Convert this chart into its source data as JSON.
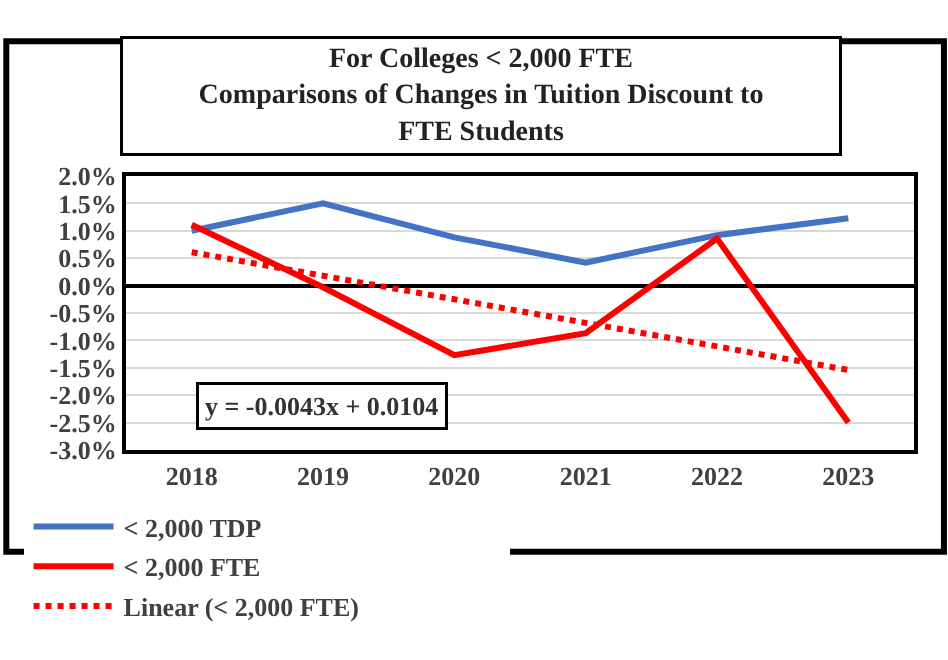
{
  "chart_data": {
    "type": "line",
    "title": "For Colleges < 2,000 FTE\nComparisons of Changes in Tuition Discount to\nFTE Students",
    "categories": [
      "2018",
      "2019",
      "2020",
      "2021",
      "2022",
      "2023"
    ],
    "series": [
      {
        "name": "< 2,000 TDP",
        "color": "#4472c4",
        "values": [
          1.0,
          1.5,
          0.88,
          0.42,
          0.92,
          1.23
        ]
      },
      {
        "name": "< 2,000 FTE",
        "color": "#ff0000",
        "values": [
          1.11,
          -0.03,
          -1.27,
          -0.87,
          0.86,
          -2.5
        ]
      },
      {
        "name": "Linear (< 2,000 FTE)",
        "color": "#ff0000",
        "line_style": "dotted",
        "values": [
          0.61,
          0.18,
          -0.25,
          -0.68,
          -1.11,
          -1.54
        ]
      }
    ],
    "annotations": [
      "y = -0.0043x + 0.0104"
    ],
    "ylim": [
      -3,
      2
    ],
    "yticks": [
      {
        "value": -3,
        "label": "-3.0%"
      },
      {
        "value": -2.5,
        "label": "-2.5%"
      },
      {
        "value": -2,
        "label": "-2.0%"
      },
      {
        "value": -1.5,
        "label": "-1.5%"
      },
      {
        "value": -1,
        "label": "-1.0%"
      },
      {
        "value": -0.5,
        "label": "-0.5%"
      },
      {
        "value": 0,
        "label": "0.0%"
      },
      {
        "value": 0.5,
        "label": "0.5%"
      },
      {
        "value": 1,
        "label": "1.0%"
      },
      {
        "value": 1.5,
        "label": "1.5%"
      },
      {
        "value": 2,
        "label": "2.0%"
      }
    ],
    "grid": "y",
    "legend": "bottom",
    "marker": "none",
    "line_style": "solid"
  }
}
